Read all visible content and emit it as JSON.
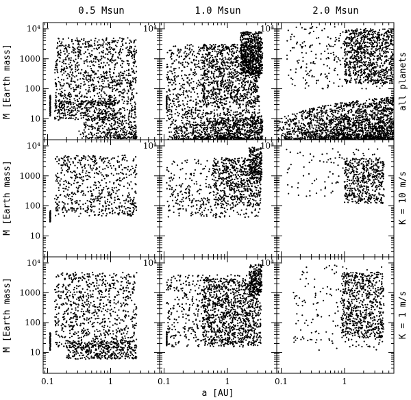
{
  "column_titles": [
    "0.5 Msun",
    "1.0 Msun",
    "2.0 Msun"
  ],
  "row_labels": [
    "all planets",
    "K = 10 m/s",
    "K = 1 m/s"
  ],
  "ylabel": "M [Earth mass]",
  "xlabel": "a [AU]",
  "colors": {
    "points": "#000000",
    "frame": "#000000",
    "background": "#ffffff"
  },
  "chart_data": {
    "type": "scatter",
    "title": "",
    "xlabel": "a [AU]",
    "ylabel": "M [Earth mass]",
    "xscale": "log",
    "yscale": "log",
    "xlim": [
      0.085,
      6.0
    ],
    "ylim": [
      2.0,
      16000
    ],
    "grid": false,
    "legend": "none",
    "x_ticks": [
      {
        "value": 0.1,
        "label": "0.1"
      },
      {
        "value": 1,
        "label": "1"
      }
    ],
    "y_ticks": [
      {
        "value": 10,
        "label": "10"
      },
      {
        "value": 100,
        "label": "100"
      },
      {
        "value": 1000,
        "label": "1000"
      },
      {
        "value": 10000,
        "label": "10⁴"
      }
    ],
    "y_ticks_top_only": {
      "value": 10000,
      "label": "10⁴"
    },
    "panels": [
      {
        "row": 0,
        "col": 0,
        "column": "0.5 Msun",
        "row_label": "all planets",
        "clusters": [
          {
            "kind": "box",
            "n": 900,
            "a": [
              0.13,
              2.6
            ],
            "m": [
              30,
              5000
            ]
          },
          {
            "kind": "box",
            "n": 320,
            "a": [
              0.13,
              1.2
            ],
            "m": [
              9,
              40
            ]
          },
          {
            "kind": "band",
            "n": 380,
            "a": [
              0.3,
              2.6
            ],
            "m": [
              2.2,
              6
            ],
            "rise": 4
          },
          {
            "kind": "line",
            "n": 60,
            "a": [
              0.11,
              0.11
            ],
            "m": [
              12,
              60
            ]
          }
        ]
      },
      {
        "row": 0,
        "col": 1,
        "column": "1.0 Msun",
        "row_label": "all planets",
        "clusters": [
          {
            "kind": "box",
            "n": 700,
            "a": [
              0.11,
              3.2
            ],
            "m": [
              20,
              3000
            ]
          },
          {
            "kind": "box",
            "n": 700,
            "a": [
              0.4,
              3.2
            ],
            "m": [
              30,
              3000
            ]
          },
          {
            "kind": "box",
            "n": 600,
            "a": [
              1.6,
              3.6
            ],
            "m": [
              300,
              8000
            ]
          },
          {
            "kind": "box",
            "n": 250,
            "a": [
              0.11,
              3.2
            ],
            "m": [
              6,
              20
            ]
          },
          {
            "kind": "band",
            "n": 900,
            "a": [
              0.11,
              3.6
            ],
            "m": [
              2.0,
              5
            ],
            "rise": 1.5
          },
          {
            "kind": "line",
            "n": 40,
            "a": [
              0.11,
              0.11
            ],
            "m": [
              18,
              60
            ]
          }
        ]
      },
      {
        "row": 0,
        "col": 2,
        "column": "2.0 Msun",
        "row_label": "all planets",
        "clusters": [
          {
            "kind": "box",
            "n": 250,
            "a": [
              0.12,
              5.5
            ],
            "m": [
              100,
              12000
            ]
          },
          {
            "kind": "box",
            "n": 800,
            "a": [
              1.0,
              5.8
            ],
            "m": [
              150,
              10000
            ]
          },
          {
            "kind": "band",
            "n": 1900,
            "a": [
              0.085,
              5.9
            ],
            "m": [
              2.0,
              9
            ],
            "rise": 5
          }
        ]
      },
      {
        "row": 1,
        "col": 0,
        "column": "0.5 Msun",
        "row_label": "K = 10 m/s",
        "clusters": [
          {
            "kind": "box",
            "n": 620,
            "a": [
              0.13,
              2.6
            ],
            "m": [
              45,
              5000
            ]
          },
          {
            "kind": "line",
            "n": 50,
            "a": [
              0.11,
              0.11
            ],
            "m": [
              28,
              70
            ]
          }
        ]
      },
      {
        "row": 1,
        "col": 1,
        "column": "1.0 Msun",
        "row_label": "K = 10 m/s",
        "clusters": [
          {
            "kind": "box",
            "n": 400,
            "a": [
              0.11,
              3.4
            ],
            "m": [
              40,
              3500
            ]
          },
          {
            "kind": "box",
            "n": 500,
            "a": [
              0.6,
              3.4
            ],
            "m": [
              100,
              4000
            ]
          },
          {
            "kind": "box",
            "n": 200,
            "a": [
              2.2,
              3.5
            ],
            "m": [
              800,
              9000
            ]
          }
        ]
      },
      {
        "row": 1,
        "col": 2,
        "column": "2.0 Msun",
        "row_label": "K = 10 m/s",
        "clusters": [
          {
            "kind": "box",
            "n": 90,
            "a": [
              0.12,
              4.0
            ],
            "m": [
              200,
              8000
            ]
          },
          {
            "kind": "box",
            "n": 480,
            "a": [
              1.0,
              4.2
            ],
            "m": [
              120,
              4000
            ]
          }
        ]
      },
      {
        "row": 2,
        "col": 0,
        "column": "0.5 Msun",
        "row_label": "K = 1 m/s",
        "clusters": [
          {
            "kind": "box",
            "n": 800,
            "a": [
              0.13,
              2.6
            ],
            "m": [
              14,
              5000
            ]
          },
          {
            "kind": "box",
            "n": 380,
            "a": [
              0.2,
              2.6
            ],
            "m": [
              6,
              25
            ]
          },
          {
            "kind": "line",
            "n": 55,
            "a": [
              0.11,
              0.11
            ],
            "m": [
              12,
              45
            ]
          }
        ]
      },
      {
        "row": 2,
        "col": 1,
        "column": "1.0 Msun",
        "row_label": "K = 1 m/s",
        "clusters": [
          {
            "kind": "box",
            "n": 650,
            "a": [
              0.11,
              3.4
            ],
            "m": [
              15,
              4000
            ]
          },
          {
            "kind": "box",
            "n": 800,
            "a": [
              0.4,
              3.4
            ],
            "m": [
              18,
              3000
            ]
          },
          {
            "kind": "box",
            "n": 200,
            "a": [
              2.2,
              3.5
            ],
            "m": [
              800,
              9000
            ]
          },
          {
            "kind": "line",
            "n": 40,
            "a": [
              0.11,
              0.11
            ],
            "m": [
              18,
              50
            ]
          }
        ]
      },
      {
        "row": 2,
        "col": 2,
        "column": "2.0 Msun",
        "row_label": "K = 1 m/s",
        "clusters": [
          {
            "kind": "box",
            "n": 180,
            "a": [
              0.15,
              4.0
            ],
            "m": [
              12,
              9000
            ]
          },
          {
            "kind": "box",
            "n": 650,
            "a": [
              0.9,
              4.2
            ],
            "m": [
              30,
              5000
            ]
          }
        ]
      }
    ]
  }
}
